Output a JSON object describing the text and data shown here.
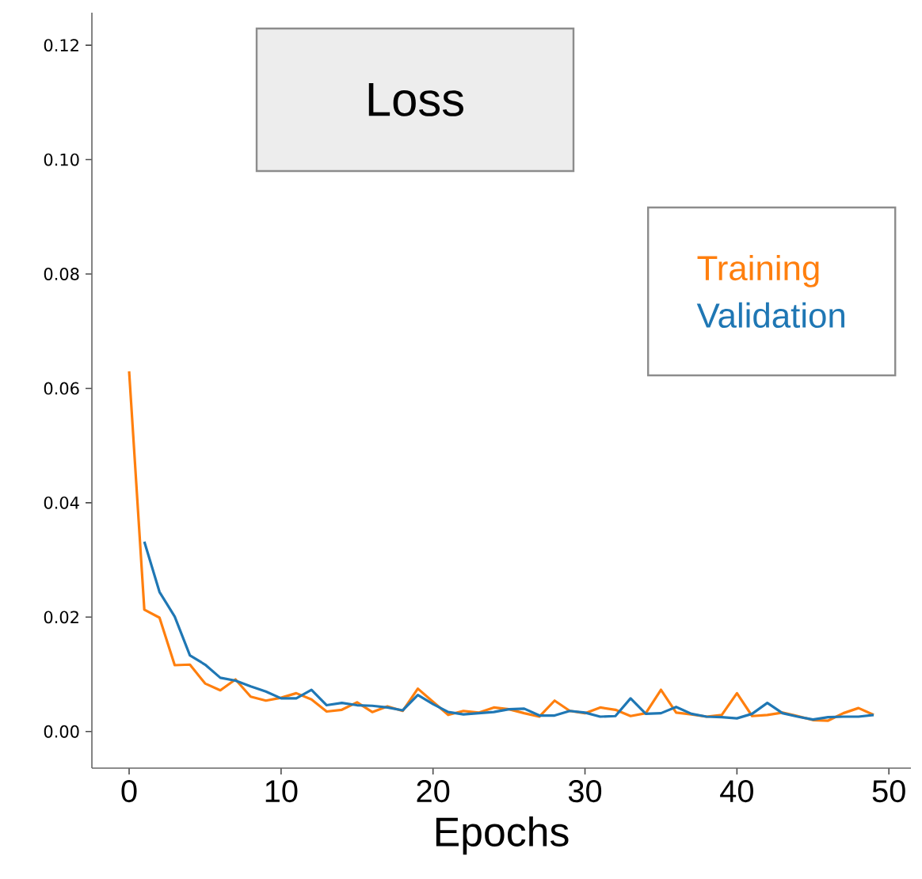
{
  "chart_data": {
    "type": "line",
    "title": "Loss",
    "xlabel": "Epochs",
    "x": [
      0,
      1,
      2,
      3,
      4,
      5,
      6,
      7,
      8,
      9,
      10,
      11,
      12,
      13,
      14,
      15,
      16,
      17,
      18,
      19,
      20,
      21,
      22,
      23,
      24,
      25,
      26,
      27,
      28,
      29,
      30,
      31,
      32,
      33,
      34,
      35,
      36,
      37,
      38,
      39,
      40,
      41,
      42,
      43,
      44,
      45,
      46,
      47,
      48,
      49
    ],
    "series": [
      {
        "name": "Training",
        "color": "#ff7f0e",
        "values": [
          0.063,
          0.0213,
          0.0199,
          0.0116,
          0.0117,
          0.0084,
          0.0072,
          0.0091,
          0.0061,
          0.0054,
          0.0059,
          0.0067,
          0.0056,
          0.0035,
          0.0038,
          0.0051,
          0.0034,
          0.0044,
          0.0036,
          0.0075,
          0.0052,
          0.0029,
          0.0036,
          0.0033,
          0.0042,
          0.0039,
          0.0032,
          0.0026,
          0.0054,
          0.0036,
          0.0032,
          0.0042,
          0.0038,
          0.0027,
          0.0032,
          0.0073,
          0.0033,
          0.003,
          0.0026,
          0.0029,
          0.0067,
          0.0027,
          0.0029,
          0.0033,
          0.0027,
          0.002,
          0.0019,
          0.0032,
          0.0041,
          0.0029
        ]
      },
      {
        "name": "Validation",
        "color": "#1f77b4",
        "values": [
          null,
          0.0332,
          0.0244,
          0.0201,
          0.0133,
          0.0117,
          0.0094,
          0.0089,
          0.0079,
          0.007,
          0.0058,
          0.0058,
          0.0073,
          0.0046,
          0.005,
          0.0046,
          0.0045,
          0.0042,
          0.0037,
          0.0064,
          0.0048,
          0.0034,
          0.003,
          0.0032,
          0.0034,
          0.0039,
          0.004,
          0.0028,
          0.0028,
          0.0036,
          0.0033,
          0.0026,
          0.0027,
          0.0058,
          0.0031,
          0.0032,
          0.0043,
          0.0031,
          0.0026,
          0.0025,
          0.0023,
          0.0031,
          0.005,
          0.0032,
          0.0026,
          0.0021,
          0.0025,
          0.0026,
          0.0026,
          0.0029
        ]
      }
    ],
    "xlim": [
      -2.45,
      51.45
    ],
    "ylim": [
      -0.0064,
      0.1257
    ],
    "xticks": [
      0,
      10,
      20,
      30,
      40,
      50
    ],
    "yticks": [
      {
        "value": 0,
        "label": "0.00"
      },
      {
        "value": 0.02,
        "label": "0.02"
      },
      {
        "value": 0.04,
        "label": "0.04"
      },
      {
        "value": 0.06,
        "label": "0.06"
      },
      {
        "value": 0.08,
        "label": "0.08"
      },
      {
        "value": 0.1,
        "label": "0.10"
      },
      {
        "value": 0.12,
        "label": "0.12"
      }
    ],
    "grid": false,
    "legend": "right",
    "marker": "none",
    "line_style": "solid"
  }
}
